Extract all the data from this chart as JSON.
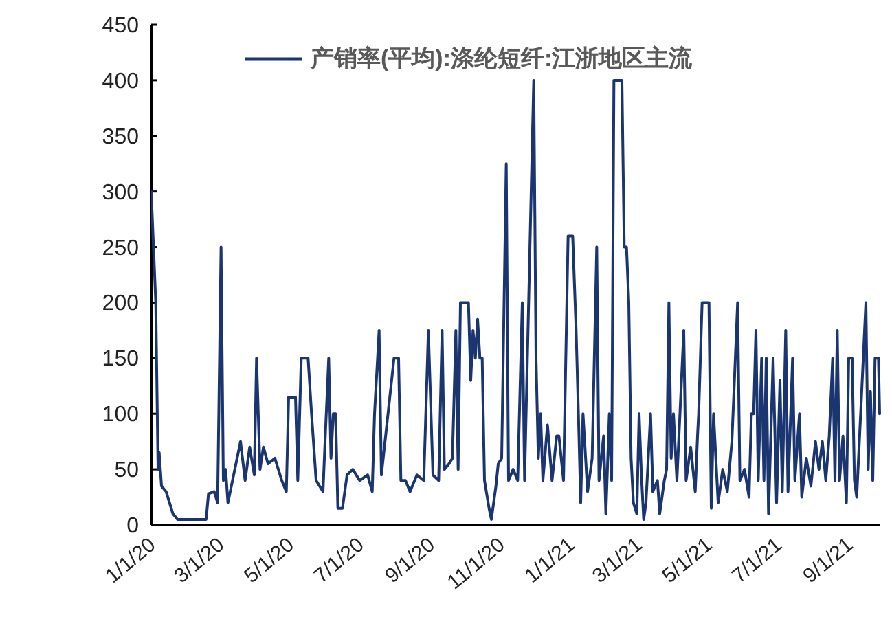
{
  "chart_data": {
    "type": "line",
    "legend": "top",
    "grid": false,
    "line_style": "solid",
    "xlim": [
      "2020-01-01",
      "2021-09-28"
    ],
    "ylim": [
      0,
      450
    ],
    "yticks": [
      0,
      50,
      100,
      150,
      200,
      250,
      300,
      350,
      400,
      450
    ],
    "xticks": [
      {
        "value": "2020-01-01",
        "label": "1/1/20"
      },
      {
        "value": "2020-03-01",
        "label": "3/1/20"
      },
      {
        "value": "2020-05-01",
        "label": "5/1/20"
      },
      {
        "value": "2020-07-01",
        "label": "7/1/20"
      },
      {
        "value": "2020-09-01",
        "label": "9/1/20"
      },
      {
        "value": "2020-11-01",
        "label": "11/1/20"
      },
      {
        "value": "2021-01-01",
        "label": "1/1/21"
      },
      {
        "value": "2021-03-01",
        "label": "3/1/21"
      },
      {
        "value": "2021-05-01",
        "label": "5/1/21"
      },
      {
        "value": "2021-07-01",
        "label": "7/1/21"
      },
      {
        "value": "2021-09-01",
        "label": "9/1/21"
      }
    ],
    "series": [
      {
        "name": "产销率(平均):涤纶短纤:江浙地区主流",
        "color": "#1b3570",
        "x": [
          "2020-01-01",
          "2020-01-03",
          "2020-01-05",
          "2020-01-07",
          "2020-01-08",
          "2020-01-10",
          "2020-01-14",
          "2020-01-17",
          "2020-01-20",
          "2020-01-24",
          "2020-02-18",
          "2020-02-20",
          "2020-02-25",
          "2020-02-28",
          "2020-03-02",
          "2020-03-04",
          "2020-03-06",
          "2020-03-08",
          "2020-03-12",
          "2020-03-19",
          "2020-03-23",
          "2020-03-27",
          "2020-03-31",
          "2020-04-02",
          "2020-04-05",
          "2020-04-08",
          "2020-04-12",
          "2020-04-18",
          "2020-04-24",
          "2020-04-28",
          "2020-04-30",
          "2020-05-06",
          "2020-05-08",
          "2020-05-11",
          "2020-05-17",
          "2020-05-20",
          "2020-05-24",
          "2020-05-30",
          "2020-06-01",
          "2020-06-04",
          "2020-06-06",
          "2020-06-08",
          "2020-06-10",
          "2020-06-12",
          "2020-06-16",
          "2020-06-20",
          "2020-06-25",
          "2020-07-01",
          "2020-07-08",
          "2020-07-12",
          "2020-07-14",
          "2020-07-18",
          "2020-07-20",
          "2020-07-31",
          "2020-08-04",
          "2020-08-06",
          "2020-08-10",
          "2020-08-14",
          "2020-08-20",
          "2020-08-26",
          "2020-08-30",
          "2020-09-03",
          "2020-09-08",
          "2020-09-11",
          "2020-09-13",
          "2020-09-17",
          "2020-09-20",
          "2020-09-23",
          "2020-09-25",
          "2020-09-27",
          "2020-10-04",
          "2020-10-06",
          "2020-10-08",
          "2020-10-10",
          "2020-10-12",
          "2020-10-14",
          "2020-10-16",
          "2020-10-18",
          "2020-10-22",
          "2020-10-24",
          "2020-10-28",
          "2020-10-30",
          "2020-11-02",
          "2020-11-06",
          "2020-11-08",
          "2020-11-12",
          "2020-11-16",
          "2020-11-20",
          "2020-11-22",
          "2020-11-30",
          "2020-12-02",
          "2020-12-04",
          "2020-12-06",
          "2020-12-08",
          "2020-12-12",
          "2020-12-16",
          "2020-12-20",
          "2020-12-22",
          "2020-12-26",
          "2020-12-30",
          "2021-01-03",
          "2021-01-06",
          "2021-01-08",
          "2021-01-10",
          "2021-01-12",
          "2021-01-16",
          "2021-01-20",
          "2021-01-24",
          "2021-01-26",
          "2021-01-30",
          "2021-02-01",
          "2021-02-04",
          "2021-02-06",
          "2021-02-08",
          "2021-02-15",
          "2021-02-17",
          "2021-02-19",
          "2021-02-21",
          "2021-02-23",
          "2021-02-25",
          "2021-02-28",
          "2021-03-02",
          "2021-03-04",
          "2021-03-06",
          "2021-03-08",
          "2021-03-12",
          "2021-03-14",
          "2021-03-18",
          "2021-03-20",
          "2021-03-24",
          "2021-03-26",
          "2021-03-28",
          "2021-03-30",
          "2021-04-01",
          "2021-04-04",
          "2021-04-10",
          "2021-04-12",
          "2021-04-16",
          "2021-04-20",
          "2021-04-22",
          "2021-04-23",
          "2021-04-26",
          "2021-05-02",
          "2021-05-04",
          "2021-05-06",
          "2021-05-10",
          "2021-05-14",
          "2021-05-18",
          "2021-05-22",
          "2021-05-27",
          "2021-05-29",
          "2021-06-02",
          "2021-06-06",
          "2021-06-08",
          "2021-06-10",
          "2021-06-12",
          "2021-06-14",
          "2021-06-17",
          "2021-06-19",
          "2021-06-21",
          "2021-06-23",
          "2021-06-27",
          "2021-06-30",
          "2021-07-03",
          "2021-07-05",
          "2021-07-08",
          "2021-07-10",
          "2021-07-14",
          "2021-07-16",
          "2021-07-20",
          "2021-07-22",
          "2021-07-26",
          "2021-07-30",
          "2021-08-03",
          "2021-08-06",
          "2021-08-09",
          "2021-08-12",
          "2021-08-15",
          "2021-08-18",
          "2021-08-20",
          "2021-08-22",
          "2021-08-24",
          "2021-08-27",
          "2021-08-30",
          "2021-09-01",
          "2021-09-04",
          "2021-09-06",
          "2021-09-08",
          "2021-09-16",
          "2021-09-18",
          "2021-09-20",
          "2021-09-22",
          "2021-09-24",
          "2021-09-27",
          "2021-09-28"
        ],
        "values": [
          300,
          250,
          200,
          50,
          65,
          35,
          30,
          20,
          10,
          5,
          5,
          28,
          30,
          20,
          250,
          40,
          50,
          20,
          40,
          75,
          40,
          70,
          45,
          150,
          50,
          70,
          55,
          60,
          40,
          30,
          115,
          115,
          40,
          150,
          150,
          100,
          40,
          30,
          80,
          150,
          60,
          100,
          100,
          15,
          15,
          45,
          50,
          40,
          45,
          30,
          100,
          175,
          45,
          150,
          150,
          40,
          40,
          30,
          45,
          40,
          175,
          45,
          40,
          175,
          50,
          55,
          60,
          175,
          50,
          200,
          200,
          130,
          175,
          150,
          185,
          150,
          150,
          40,
          15,
          5,
          35,
          55,
          60,
          325,
          40,
          50,
          40,
          200,
          40,
          400,
          150,
          60,
          100,
          40,
          90,
          40,
          80,
          80,
          40,
          260,
          260,
          175,
          100,
          20,
          100,
          30,
          60,
          250,
          40,
          80,
          10,
          100,
          40,
          400,
          400,
          250,
          250,
          200,
          60,
          20,
          10,
          100,
          45,
          5,
          20,
          100,
          30,
          40,
          10,
          40,
          50,
          200,
          60,
          100,
          40,
          175,
          40,
          70,
          30,
          80,
          100,
          200,
          200,
          15,
          100,
          20,
          50,
          30,
          75,
          200,
          40,
          50,
          25,
          100,
          100,
          175,
          40,
          150,
          40,
          150,
          10,
          150,
          20,
          130,
          30,
          175,
          30,
          150,
          40,
          100,
          25,
          60,
          35,
          75,
          50,
          75,
          40,
          80,
          150,
          40,
          175,
          40,
          80,
          20,
          150,
          150,
          40,
          25,
          200,
          50,
          120,
          40,
          150,
          150,
          100
        ]
      }
    ]
  }
}
